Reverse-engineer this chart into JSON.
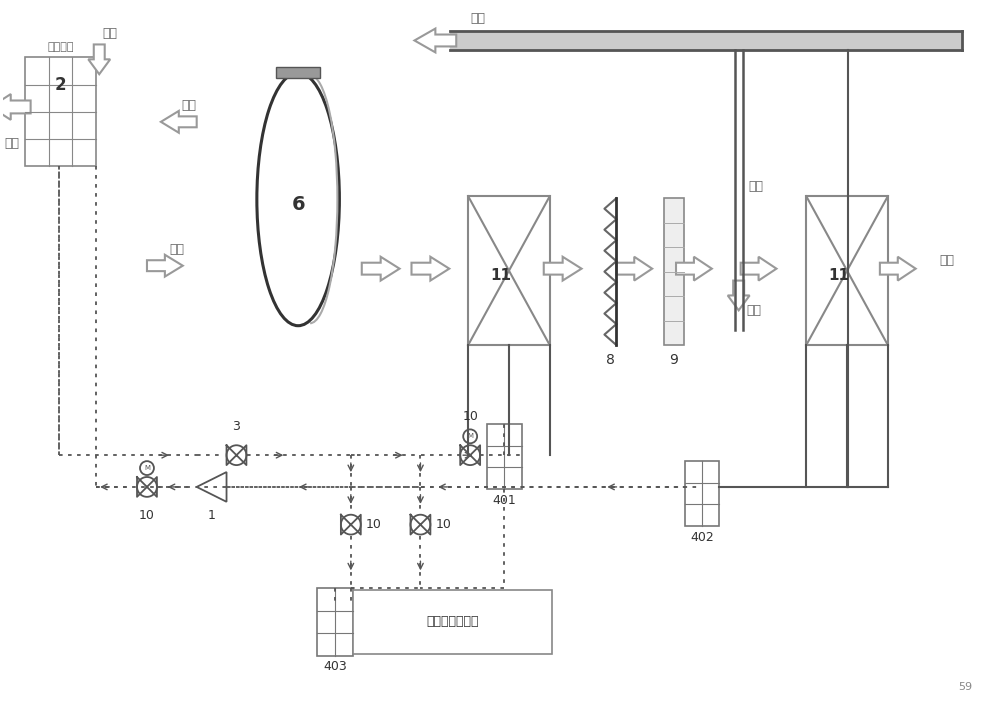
{
  "line_color": "#555555",
  "dotted_color": "#555555",
  "arrow_color": "#999999",
  "labels": {
    "san_re": "散热装置",
    "label2": "2",
    "label6": "6",
    "label11a": "11",
    "label11b": "11",
    "label1": "1",
    "label3": "3",
    "label8": "8",
    "label9": "9",
    "label10a": "10",
    "label10b": "10",
    "label10c": "10",
    "label10d": "10",
    "label10e": "10",
    "label401": "401",
    "label402": "402",
    "label403": "403",
    "xin_feng_top": "新风",
    "pai_feng_left": "排风",
    "pai_feng_arrow": "排风",
    "xin_feng_mid": "新风",
    "hui_feng_top": "回风",
    "hui_feng_mid": "回风",
    "hun_feng": "混风",
    "song_feng": "送风",
    "wai_shu": "外输冷（热）水"
  }
}
